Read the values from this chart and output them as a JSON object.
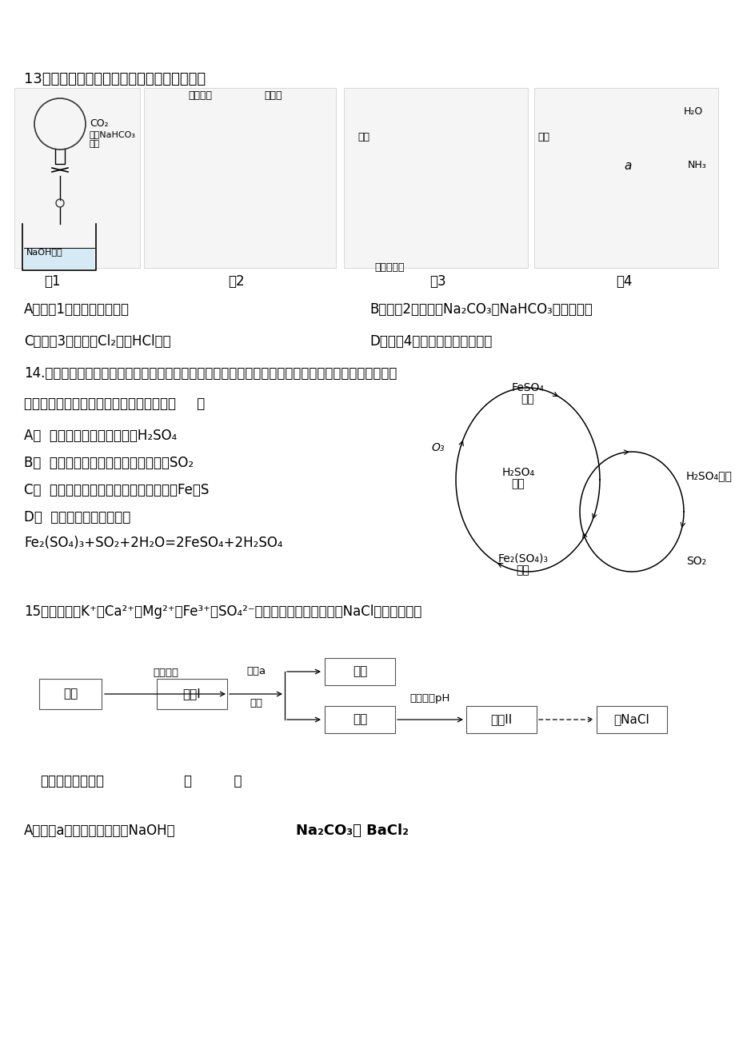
{
  "bg_color": "#ffffff",
  "page_width": 9.2,
  "page_height": 13.02,
  "dpi": 100,
  "font_cjk": "SimHei",
  "font_fallback": "Arial Unicode MS",
  "q13_title": "13．某课外实验小组设计的下列实验合理的是",
  "q13_A": "A．用图1装置完成噴泉实验",
  "q13_B": "B．用图2装置比较Na₂CO₃和NaHCO₃的热稳定性",
  "q13_C": "C．用图3装置除去Cl₂中的HCl气体",
  "q13_D": "D．用图4装置验证氨气易溶于水",
  "fig1_label": "图1",
  "fig2_label": "图2",
  "fig3_label": "图3",
  "fig4_label": "图4",
  "q14_line1": "14.含硫煟燃烧会产生大气污染物，为防治该污染，某工厂设计了新的治污方法，同时可得到化工产品，",
  "q14_line2": "该工艺流程如图所示，下列叙述错误的是（     ）",
  "q14_A": "A．  该过程中可得到化工产品H₂SO₄",
  "q14_B": "B．  该工艺流程是除去煟燃烧时产生的SO₂",
  "q14_C": "C．  该过程中化合价发生改变的元素只有Fe和S",
  "q14_D": "D．  图中涉及的反应之一为",
  "q14_eq": "Fe₂(SO₄)₃+SO₂+2H₂O=2FeSO₄+2H₂SO₄",
  "cycle_FeSO4": "FeSO₄",
  "cycle_rong1": "溶液",
  "cycle_O3": "O₃",
  "cycle_H2SO4": "H₂SO₄",
  "cycle_rong2": "溶液",
  "cycle_H2SO4sol": "H₂SO₄溶液",
  "cycle_Fe2SO43": "Fe₂(SO₄)₃",
  "cycle_rong3": "溶液",
  "cycle_SO2": "SO₂",
  "q15_title": "15、粗盐含有K⁺、Ca²⁺、Mg²⁺、Fe³⁺、SO₄²⁻等杂质离子，实验室提绯NaCl的流程如图：",
  "flow_cucai": "粗盐",
  "flow_rongI": "溶液I",
  "flow_chendiank": "沉淦",
  "flow_lüye": "滤液",
  "flow_rongII": "溶液II",
  "flow_NaCl": "绯NaCl",
  "flow_step1": "加水溶解",
  "flow_step2a": "试剑a",
  "flow_step2b": "过滤",
  "flow_step3": "加盐酸调pH",
  "q15_note": "下列说法错误的是",
  "q15_bracket": "（          ）",
  "q15_A_pre": "A．试剑a的滴加顺序依次为NaOH、",
  "q15_A_bold": "Na₂CO₃｀ BaCl₂"
}
